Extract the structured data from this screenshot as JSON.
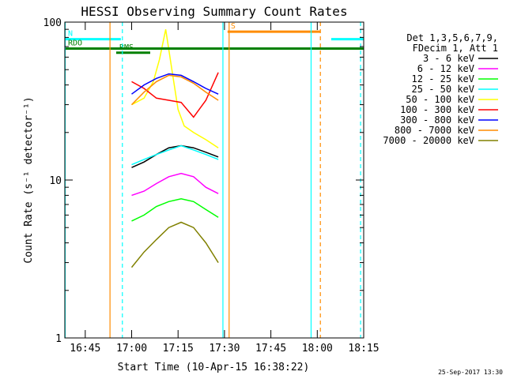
{
  "chart_data": {
    "type": "line",
    "title": "HESSI Observing Summary Count Rates",
    "xlabel": "Start Time (10-Apr-15 16:38:22)",
    "ylabel": "Count Rate (s⁻¹ detector⁻¹)",
    "footer": "25-Sep-2017 13:30",
    "y_scale": "log",
    "ylim": [
      1,
      100
    ],
    "xlim_minutes": [
      38.4,
      135.0
    ],
    "x_ticks": [
      {
        "label": "16:45",
        "min": 45
      },
      {
        "label": "17:00",
        "min": 60
      },
      {
        "label": "17:15",
        "min": 75
      },
      {
        "label": "17:30",
        "min": 90
      },
      {
        "label": "17:45",
        "min": 105
      },
      {
        "label": "18:00",
        "min": 120
      },
      {
        "label": "18:15",
        "min": 135
      }
    ],
    "y_ticks": [
      {
        "label": "1",
        "value": 1
      },
      {
        "label": "10",
        "value": 10
      },
      {
        "label": "100",
        "value": 100
      }
    ],
    "grid": false,
    "legend_position": "top-right",
    "legend_header": [
      "Det 1,3,5,6,7,9,",
      "FDecim 1, Att 1"
    ],
    "series": [
      {
        "name": "3 - 6 keV",
        "color": "#000000",
        "x": [
          60,
          64,
          68,
          72,
          76,
          80,
          84,
          88
        ],
        "y": [
          12,
          13,
          14.5,
          16,
          16.5,
          16,
          15,
          14
        ]
      },
      {
        "name": "6 - 12 keV",
        "color": "#ff00ff",
        "x": [
          60,
          64,
          68,
          72,
          76,
          80,
          84,
          88
        ],
        "y": [
          8.0,
          8.5,
          9.5,
          10.5,
          11,
          10.5,
          9,
          8.2
        ]
      },
      {
        "name": "12 - 25 keV",
        "color": "#00ff00",
        "x": [
          60,
          64,
          68,
          72,
          76,
          80,
          84,
          88
        ],
        "y": [
          5.5,
          6.0,
          6.8,
          7.3,
          7.6,
          7.3,
          6.5,
          5.8
        ]
      },
      {
        "name": "25 - 50 keV",
        "color": "#00ffff",
        "x": [
          60,
          64,
          68,
          72,
          76,
          80,
          84,
          88
        ],
        "y": [
          12.5,
          13.5,
          14.5,
          15.5,
          16.5,
          15.5,
          14.5,
          13.5
        ]
      },
      {
        "name": "50 - 100 keV",
        "color": "#ffff00",
        "x": [
          60,
          64,
          67,
          69,
          71,
          73,
          75,
          77,
          80,
          84,
          88
        ],
        "y": [
          30,
          33,
          42,
          58,
          90,
          50,
          28,
          22,
          20,
          18,
          16
        ]
      },
      {
        "name": "100 - 300 keV",
        "color": "#ff0000",
        "x": [
          60,
          64,
          68,
          72,
          76,
          80,
          84,
          88
        ],
        "y": [
          42,
          38,
          33,
          32,
          31,
          25,
          32,
          48
        ]
      },
      {
        "name": "300 - 800 keV",
        "color": "#0000ff",
        "x": [
          60,
          64,
          68,
          72,
          76,
          80,
          84,
          88
        ],
        "y": [
          35,
          40,
          44,
          47,
          46,
          42,
          38,
          35
        ]
      },
      {
        "name": "800 - 7000 keV",
        "color": "#ff8c00",
        "x": [
          60,
          64,
          68,
          72,
          76,
          80,
          84,
          88
        ],
        "y": [
          30,
          36,
          42,
          46,
          45,
          41,
          36,
          32
        ]
      },
      {
        "name": "7000 - 20000 keV",
        "color": "#808000",
        "x": [
          60,
          64,
          68,
          72,
          76,
          80,
          84,
          88
        ],
        "y": [
          2.8,
          3.5,
          4.2,
          5.0,
          5.4,
          5.0,
          4.0,
          3.0
        ]
      }
    ],
    "flag_bars": [
      {
        "label": "N",
        "color": "#00ffff",
        "segments": [
          [
            38.4,
            56.5
          ],
          [
            124.5,
            135.0
          ]
        ],
        "y": 78
      },
      {
        "label": "S",
        "color": "#ff8c00",
        "segments": [
          [
            91.0,
            121.0
          ]
        ],
        "y": 87
      },
      {
        "label": "RDO",
        "color": "#008000",
        "segments": [
          [
            38.4,
            135.0
          ]
        ],
        "y": 68
      },
      {
        "label": "RMS",
        "color": "#008000",
        "segments": [
          [
            55.0,
            66.0
          ]
        ],
        "y": 64
      }
    ],
    "vertical_markers": [
      {
        "color": "#00ffff",
        "style": "solid",
        "min": 38.5
      },
      {
        "color": "#ff8c00",
        "style": "solid",
        "min": 53.0
      },
      {
        "color": "#00ffff",
        "style": "dashed",
        "min": 57.0
      },
      {
        "color": "#00ffff",
        "style": "solid",
        "min": 89.5
      },
      {
        "color": "#ff8c00",
        "style": "solid",
        "min": 91.5
      },
      {
        "color": "#00ffff",
        "style": "solid",
        "min": 118.0
      },
      {
        "color": "#ff8c00",
        "style": "dashed",
        "min": 121.0
      },
      {
        "color": "#00ffff",
        "style": "dashed",
        "min": 134.0
      }
    ]
  }
}
